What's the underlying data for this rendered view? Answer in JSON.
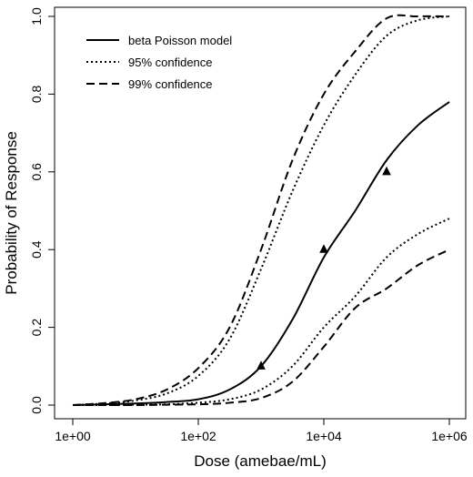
{
  "chart_data": {
    "type": "line",
    "xlabel": "Dose (amebae/mL)",
    "ylabel": "Probability of Response",
    "x_scale": "log10",
    "xlim": [
      1,
      1000000
    ],
    "ylim": [
      0,
      1
    ],
    "x_ticks": [
      {
        "value": 1,
        "label": "1e+00"
      },
      {
        "value": 100,
        "label": "1e+02"
      },
      {
        "value": 10000,
        "label": "1e+04"
      },
      {
        "value": 1000000,
        "label": "1e+06"
      }
    ],
    "y_ticks": [
      {
        "value": 0.0,
        "label": "0.0"
      },
      {
        "value": 0.2,
        "label": "0.2"
      },
      {
        "value": 0.4,
        "label": "0.4"
      },
      {
        "value": 0.6,
        "label": "0.6"
      },
      {
        "value": 0.8,
        "label": "0.8"
      },
      {
        "value": 1.0,
        "label": "1.0"
      }
    ],
    "legend_position": "top-left",
    "grid": false,
    "series": [
      {
        "name": "beta Poisson model",
        "style": "solid",
        "x": [
          1,
          3.16,
          10,
          31.6,
          100,
          316,
          1000,
          3162,
          10000,
          31623,
          100000,
          316228,
          1000000
        ],
        "y": [
          0.0,
          0.002,
          0.004,
          0.008,
          0.015,
          0.04,
          0.1,
          0.22,
          0.38,
          0.5,
          0.63,
          0.72,
          0.78
        ]
      },
      {
        "name": "95% confidence",
        "style": "dotted",
        "x": [
          1,
          3.16,
          10,
          31.6,
          100,
          316,
          1000,
          3162,
          10000,
          31623,
          100000,
          316228,
          1000000
        ],
        "y": [
          0.0,
          0.004,
          0.012,
          0.03,
          0.075,
          0.17,
          0.35,
          0.55,
          0.72,
          0.85,
          0.95,
          0.99,
          1.0
        ]
      },
      {
        "name": "95% confidence",
        "style": "dotted",
        "x": [
          1,
          3.16,
          10,
          31.6,
          100,
          316,
          1000,
          3162,
          10000,
          31623,
          100000,
          316228,
          1000000
        ],
        "y": [
          0.0,
          0.0,
          0.001,
          0.002,
          0.006,
          0.015,
          0.04,
          0.1,
          0.2,
          0.28,
          0.38,
          0.44,
          0.48
        ]
      },
      {
        "name": "99% confidence",
        "style": "dashed",
        "x": [
          1,
          3.16,
          10,
          31.6,
          100,
          316,
          1000,
          3162,
          10000,
          31623,
          100000,
          316228,
          1000000
        ],
        "y": [
          0.0,
          0.005,
          0.015,
          0.04,
          0.095,
          0.2,
          0.4,
          0.63,
          0.8,
          0.91,
          0.995,
          1.0,
          1.0
        ]
      },
      {
        "name": "99% confidence",
        "style": "dashed",
        "x": [
          1,
          3.16,
          10,
          31.6,
          100,
          316,
          1000,
          3162,
          10000,
          31623,
          100000,
          316228,
          1000000
        ],
        "y": [
          0.0,
          0.0,
          0.0,
          0.001,
          0.002,
          0.006,
          0.018,
          0.06,
          0.15,
          0.25,
          0.3,
          0.36,
          0.4
        ]
      }
    ],
    "observations": {
      "marker": "triangle",
      "x": [
        1000,
        10000,
        100000
      ],
      "y": [
        0.1,
        0.4,
        0.6
      ]
    },
    "legend": [
      {
        "label": "beta Poisson model",
        "style": "solid"
      },
      {
        "label": "95% confidence",
        "style": "dotted"
      },
      {
        "label": "99% confidence",
        "style": "dashed"
      }
    ]
  }
}
